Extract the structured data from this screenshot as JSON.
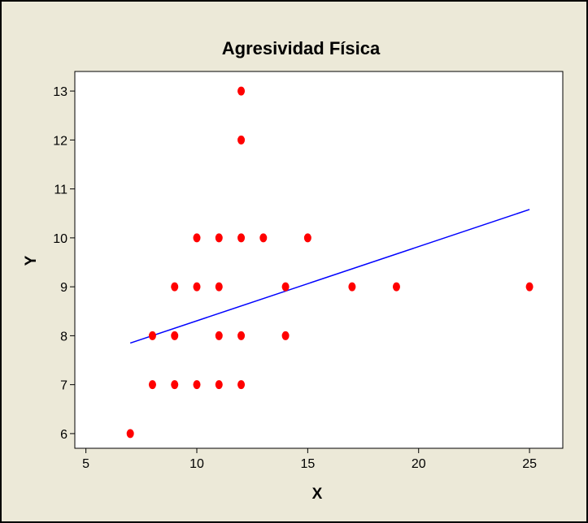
{
  "chart_data": {
    "type": "scatter",
    "title": "Agresividad Física",
    "xlabel": "X",
    "ylabel": "Y",
    "xlim": [
      4.5,
      26.5
    ],
    "ylim": [
      5.7,
      13.4
    ],
    "x_ticks": [
      5,
      10,
      15,
      20,
      25
    ],
    "y_ticks": [
      6,
      7,
      8,
      9,
      10,
      11,
      12,
      13
    ],
    "series": [
      {
        "points": [
          [
            7,
            6
          ],
          [
            8,
            7
          ],
          [
            8,
            8
          ],
          [
            9,
            7
          ],
          [
            9,
            8
          ],
          [
            9,
            9
          ],
          [
            10,
            7
          ],
          [
            10,
            9
          ],
          [
            10,
            10
          ],
          [
            11,
            7
          ],
          [
            11,
            8
          ],
          [
            11,
            9
          ],
          [
            11,
            10
          ],
          [
            12,
            7
          ],
          [
            12,
            8
          ],
          [
            12,
            10
          ],
          [
            12,
            12
          ],
          [
            12,
            13
          ],
          [
            13,
            10
          ],
          [
            14,
            8
          ],
          [
            14,
            9
          ],
          [
            15,
            10
          ],
          [
            17,
            9
          ],
          [
            19,
            9
          ],
          [
            25,
            9
          ]
        ]
      }
    ],
    "fit_line": {
      "x": [
        7,
        25
      ],
      "y": [
        7.85,
        10.58
      ]
    },
    "grid": false,
    "colors": {
      "points": "#ff0000",
      "fit_line": "#0000ff",
      "plot_background": "#ffffff",
      "frame_background": "#ece9d8"
    }
  }
}
